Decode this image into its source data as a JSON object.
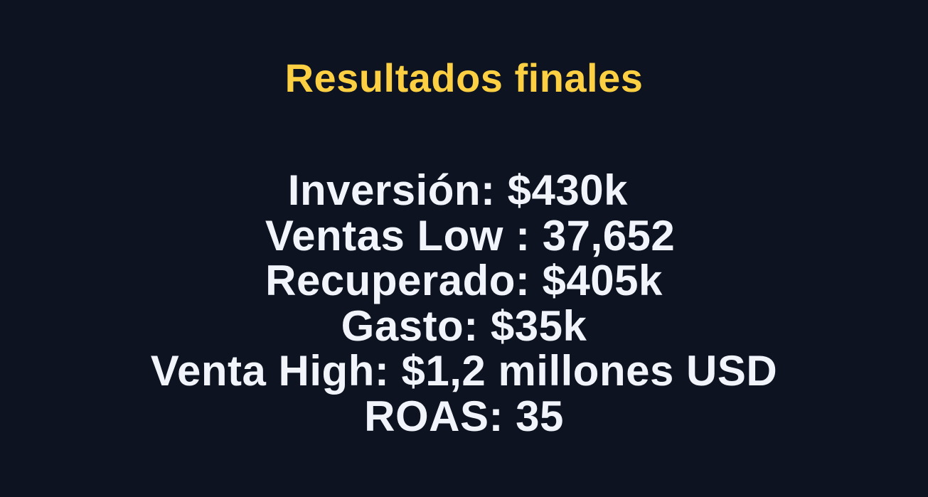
{
  "slide": {
    "title": "Resultados finales",
    "lines": [
      "Inversión: $430k ",
      " Ventas Low : 37,652",
      "Recuperado: $405k",
      "Gasto: $35k",
      "Venta High: $1,2 millones USD",
      "ROAS: 35"
    ]
  },
  "colors": {
    "background": "#0d1320",
    "title": "#fdd043",
    "text": "#f1f4fb"
  }
}
